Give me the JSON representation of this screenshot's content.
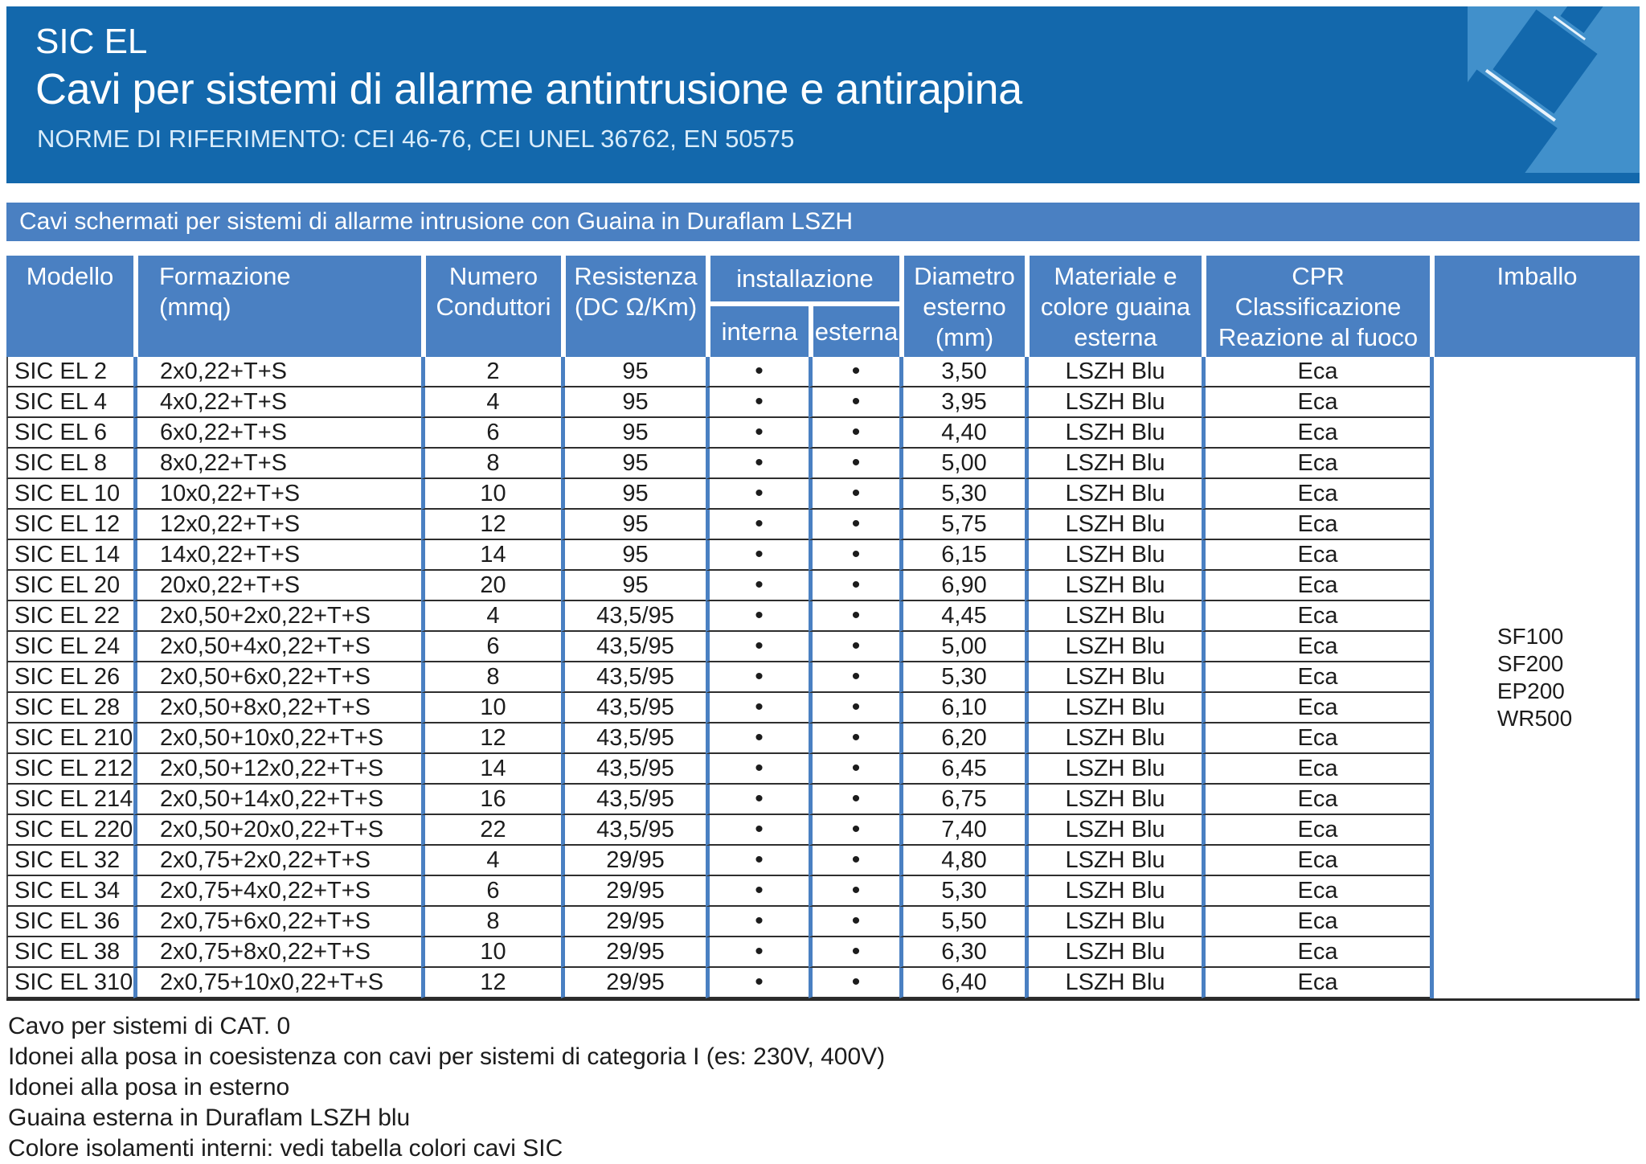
{
  "header": {
    "title": "SIC EL",
    "subtitle": "Cavi per sistemi di allarme antintrusione e antirapina",
    "norms": "NORME DI RIFERIMENTO: CEI 46-76, CEI UNEL 36762, EN 50575",
    "colors": {
      "background": "#1368ac",
      "corner_tile": "#4190cb",
      "text": "#ffffff"
    }
  },
  "section_bar": {
    "text": "Cavi schermati per sistemi di allarme intrusione con Guaina in Duraflam LSZH",
    "background": "#4a80c2"
  },
  "table": {
    "header_background": "#4a80c2",
    "grid_line_color": "#2e2e2e",
    "column_line_color": "#4a80c2",
    "bullet": "•",
    "columns": {
      "modello": "Modello",
      "formazione": "Formazione\n(mmq)",
      "numero_conduttori": "Numero\nConduttori",
      "resistenza": "Resistenza\n(DC Ω/Km)",
      "installazione": "installazione",
      "installazione_interna": "interna",
      "installazione_esterna": "esterna",
      "diametro": "Diametro\nesterno\n(mm)",
      "materiale": "Materiale e\ncolore guaina\nesterna",
      "cpr": "CPR\nClassificazione\nReazione al fuoco",
      "imballo": "Imballo"
    },
    "rows": [
      {
        "modello": "SIC EL 2",
        "formazione": "2x0,22+T+S",
        "conduttori": "2",
        "resistenza": "95",
        "interna": true,
        "esterna": true,
        "diametro": "3,50",
        "guaina": "LSZH Blu",
        "cpr": "Eca"
      },
      {
        "modello": "SIC EL 4",
        "formazione": "4x0,22+T+S",
        "conduttori": "4",
        "resistenza": "95",
        "interna": true,
        "esterna": true,
        "diametro": "3,95",
        "guaina": "LSZH Blu",
        "cpr": "Eca"
      },
      {
        "modello": "SIC EL 6",
        "formazione": "6x0,22+T+S",
        "conduttori": "6",
        "resistenza": "95",
        "interna": true,
        "esterna": true,
        "diametro": "4,40",
        "guaina": "LSZH Blu",
        "cpr": "Eca"
      },
      {
        "modello": "SIC EL 8",
        "formazione": "8x0,22+T+S",
        "conduttori": "8",
        "resistenza": "95",
        "interna": true,
        "esterna": true,
        "diametro": "5,00",
        "guaina": "LSZH Blu",
        "cpr": "Eca"
      },
      {
        "modello": "SIC EL 10",
        "formazione": "10x0,22+T+S",
        "conduttori": "10",
        "resistenza": "95",
        "interna": true,
        "esterna": true,
        "diametro": "5,30",
        "guaina": "LSZH Blu",
        "cpr": "Eca"
      },
      {
        "modello": "SIC EL 12",
        "formazione": "12x0,22+T+S",
        "conduttori": "12",
        "resistenza": "95",
        "interna": true,
        "esterna": true,
        "diametro": "5,75",
        "guaina": "LSZH Blu",
        "cpr": "Eca"
      },
      {
        "modello": "SIC EL 14",
        "formazione": "14x0,22+T+S",
        "conduttori": "14",
        "resistenza": "95",
        "interna": true,
        "esterna": true,
        "diametro": "6,15",
        "guaina": "LSZH Blu",
        "cpr": "Eca"
      },
      {
        "modello": "SIC EL 20",
        "formazione": "20x0,22+T+S",
        "conduttori": "20",
        "resistenza": "95",
        "interna": true,
        "esterna": true,
        "diametro": "6,90",
        "guaina": "LSZH Blu",
        "cpr": "Eca"
      },
      {
        "modello": "SIC EL 22",
        "formazione": "2x0,50+2x0,22+T+S",
        "conduttori": "4",
        "resistenza": "43,5/95",
        "interna": true,
        "esterna": true,
        "diametro": "4,45",
        "guaina": "LSZH Blu",
        "cpr": "Eca"
      },
      {
        "modello": "SIC EL 24",
        "formazione": "2x0,50+4x0,22+T+S",
        "conduttori": "6",
        "resistenza": "43,5/95",
        "interna": true,
        "esterna": true,
        "diametro": "5,00",
        "guaina": "LSZH Blu",
        "cpr": "Eca"
      },
      {
        "modello": "SIC EL 26",
        "formazione": "2x0,50+6x0,22+T+S",
        "conduttori": "8",
        "resistenza": "43,5/95",
        "interna": true,
        "esterna": true,
        "diametro": "5,30",
        "guaina": "LSZH Blu",
        "cpr": "Eca"
      },
      {
        "modello": "SIC EL 28",
        "formazione": "2x0,50+8x0,22+T+S",
        "conduttori": "10",
        "resistenza": "43,5/95",
        "interna": true,
        "esterna": true,
        "diametro": "6,10",
        "guaina": "LSZH Blu",
        "cpr": "Eca"
      },
      {
        "modello": "SIC EL 210",
        "formazione": "2x0,50+10x0,22+T+S",
        "conduttori": "12",
        "resistenza": "43,5/95",
        "interna": true,
        "esterna": true,
        "diametro": "6,20",
        "guaina": "LSZH Blu",
        "cpr": "Eca"
      },
      {
        "modello": "SIC EL 212",
        "formazione": "2x0,50+12x0,22+T+S",
        "conduttori": "14",
        "resistenza": "43,5/95",
        "interna": true,
        "esterna": true,
        "diametro": "6,45",
        "guaina": "LSZH Blu",
        "cpr": "Eca"
      },
      {
        "modello": "SIC EL 214",
        "formazione": "2x0,50+14x0,22+T+S",
        "conduttori": "16",
        "resistenza": "43,5/95",
        "interna": true,
        "esterna": true,
        "diametro": "6,75",
        "guaina": "LSZH Blu",
        "cpr": "Eca"
      },
      {
        "modello": "SIC EL 220",
        "formazione": "2x0,50+20x0,22+T+S",
        "conduttori": "22",
        "resistenza": "43,5/95",
        "interna": true,
        "esterna": true,
        "diametro": "7,40",
        "guaina": "LSZH Blu",
        "cpr": "Eca"
      },
      {
        "modello": "SIC EL 32",
        "formazione": "2x0,75+2x0,22+T+S",
        "conduttori": "4",
        "resistenza": "29/95",
        "interna": true,
        "esterna": true,
        "diametro": "4,80",
        "guaina": "LSZH Blu",
        "cpr": "Eca"
      },
      {
        "modello": "SIC EL 34",
        "formazione": "2x0,75+4x0,22+T+S",
        "conduttori": "6",
        "resistenza": "29/95",
        "interna": true,
        "esterna": true,
        "diametro": "5,30",
        "guaina": "LSZH Blu",
        "cpr": "Eca"
      },
      {
        "modello": "SIC EL 36",
        "formazione": "2x0,75+6x0,22+T+S",
        "conduttori": "8",
        "resistenza": "29/95",
        "interna": true,
        "esterna": true,
        "diametro": "5,50",
        "guaina": "LSZH Blu",
        "cpr": "Eca"
      },
      {
        "modello": "SIC EL 38",
        "formazione": "2x0,75+8x0,22+T+S",
        "conduttori": "10",
        "resistenza": "29/95",
        "interna": true,
        "esterna": true,
        "diametro": "6,30",
        "guaina": "LSZH Blu",
        "cpr": "Eca"
      },
      {
        "modello": "SIC EL 310",
        "formazione": "2x0,75+10x0,22+T+S",
        "conduttori": "12",
        "resistenza": "29/95",
        "interna": true,
        "esterna": true,
        "diametro": "6,40",
        "guaina": "LSZH Blu",
        "cpr": "Eca"
      }
    ],
    "imballo_values": [
      "SF100",
      "SF200",
      "EP200",
      "WR500"
    ]
  },
  "footnotes": [
    "Cavo per sistemi di CAT. 0",
    "Idonei alla posa in coesistenza con cavi per sistemi di categoria I (es: 230V, 400V)",
    "Idonei alla posa in esterno",
    "Guaina esterna in Duraflam LSZH blu",
    "Colore isolamenti interni: vedi tabella colori cavi SIC"
  ]
}
